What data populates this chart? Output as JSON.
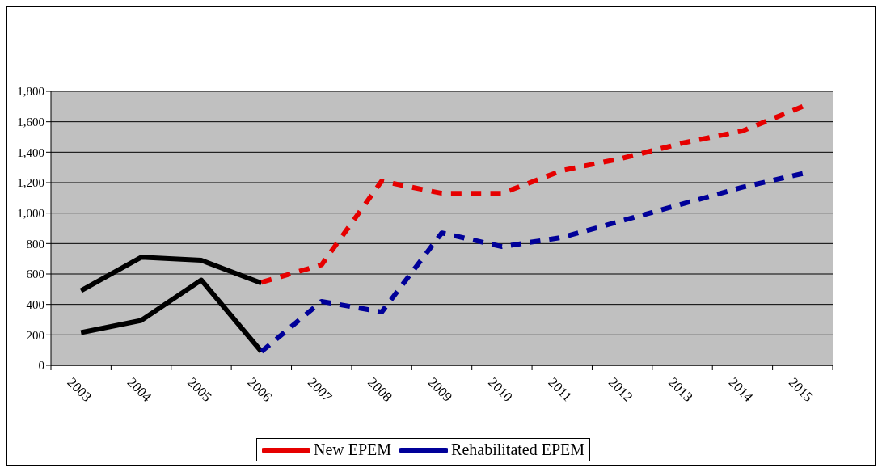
{
  "chart_data": {
    "type": "line",
    "categories": [
      "2003",
      "2004",
      "2005",
      "2006",
      "2007",
      "2008",
      "2009",
      "2010",
      "2011",
      "2012",
      "2013",
      "2014",
      "2015"
    ],
    "series": [
      {
        "color": "#000000",
        "line_style": "solid",
        "values": [
          490,
          710,
          690,
          540,
          null,
          null,
          null,
          null,
          null,
          null,
          null,
          null,
          null
        ]
      },
      {
        "color": "#000000",
        "line_style": "solid",
        "values": [
          215,
          295,
          560,
          90,
          null,
          null,
          null,
          null,
          null,
          null,
          null,
          null,
          null
        ]
      },
      {
        "name": "New EPEM",
        "color": "#e60000",
        "line_style": "dashed",
        "values": [
          null,
          null,
          null,
          545,
          660,
          1210,
          1130,
          1130,
          1280,
          1360,
          1460,
          1540,
          1700
        ]
      },
      {
        "name": "Rehabilitated EPEM",
        "color": "#000099",
        "line_style": "dashed",
        "values": [
          null,
          null,
          null,
          90,
          420,
          350,
          870,
          780,
          840,
          950,
          1060,
          1170,
          1260
        ]
      }
    ],
    "ylim": [
      0,
      1800
    ],
    "yticks": [
      {
        "value": 0,
        "label": "0"
      },
      {
        "value": 200,
        "label": "200"
      },
      {
        "value": 400,
        "label": "400"
      },
      {
        "value": 600,
        "label": "600"
      },
      {
        "value": 800,
        "label": "800"
      },
      {
        "value": 1000,
        "label": "1,000"
      },
      {
        "value": 1200,
        "label": "1,200"
      },
      {
        "value": 1400,
        "label": "1,400"
      },
      {
        "value": 1600,
        "label": "1,600"
      },
      {
        "value": 1800,
        "label": "1,800"
      }
    ],
    "grid": "y",
    "legend": "bottom",
    "marker": "none"
  }
}
